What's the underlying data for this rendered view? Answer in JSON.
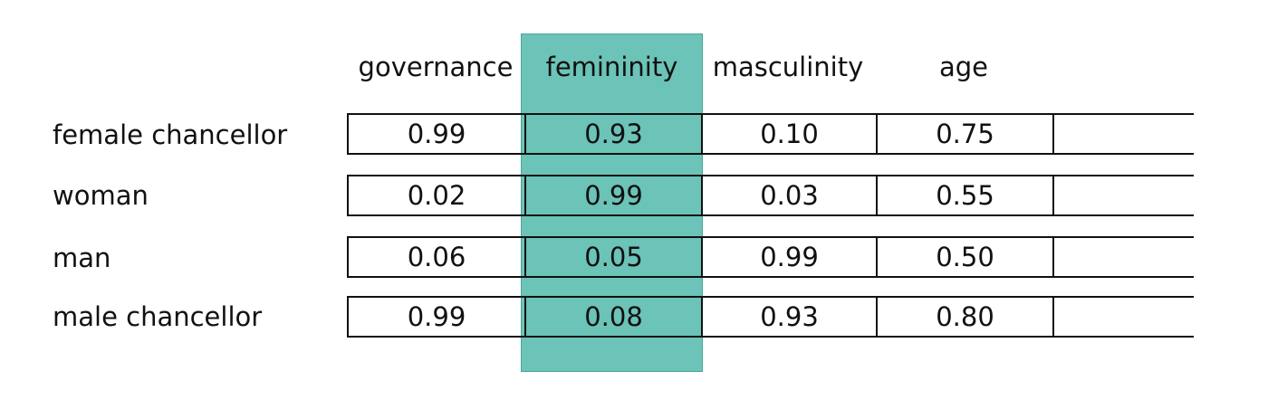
{
  "colors": {
    "highlight": "#6cc3b8",
    "highlight_border": "#4aa597",
    "text": "#111111",
    "grid": "#111111"
  },
  "columns": [
    "governance",
    "femininity",
    "masculinity",
    "age",
    ""
  ],
  "highlighted_column": 1,
  "rows": [
    {
      "label": "female chancellor",
      "values": [
        "0.99",
        "0.93",
        "0.10",
        "0.75",
        ""
      ]
    },
    {
      "label": "woman",
      "values": [
        "0.02",
        "0.99",
        "0.03",
        "0.55",
        ""
      ]
    },
    {
      "label": "man",
      "values": [
        "0.06",
        "0.05",
        "0.99",
        "0.50",
        ""
      ]
    },
    {
      "label": "male chancellor",
      "values": [
        "0.99",
        "0.08",
        "0.93",
        "0.80",
        ""
      ]
    }
  ]
}
